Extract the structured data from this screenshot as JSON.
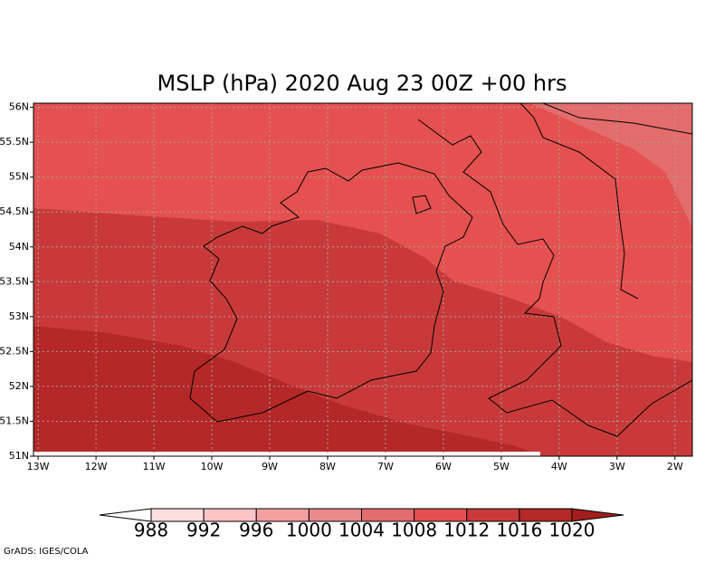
{
  "chart_data": {
    "type": "map",
    "title": "MSLP (hPa) 2020 Aug 23 00Z +00 hrs",
    "xlim": [
      -13.08,
      -1.7
    ],
    "ylim": [
      51,
      56.06
    ],
    "xticks": [
      {
        "value": -13,
        "label": "13W"
      },
      {
        "value": -12,
        "label": "12W"
      },
      {
        "value": -11,
        "label": "11W"
      },
      {
        "value": -10,
        "label": "10W"
      },
      {
        "value": -9,
        "label": "9W"
      },
      {
        "value": -8,
        "label": "8W"
      },
      {
        "value": -7,
        "label": "7W"
      },
      {
        "value": -6,
        "label": "6W"
      },
      {
        "value": -5,
        "label": "5W"
      },
      {
        "value": -4,
        "label": "4W"
      },
      {
        "value": -3,
        "label": "3W"
      },
      {
        "value": -2,
        "label": "2W"
      }
    ],
    "yticks": [
      {
        "value": 51,
        "label": "51N"
      },
      {
        "value": 51.5,
        "label": "51.5N"
      },
      {
        "value": 52,
        "label": "52N"
      },
      {
        "value": 52.5,
        "label": "52.5N"
      },
      {
        "value": 53,
        "label": "53N"
      },
      {
        "value": 53.5,
        "label": "53.5N"
      },
      {
        "value": 54,
        "label": "54N"
      },
      {
        "value": 54.5,
        "label": "54.5N"
      },
      {
        "value": 55,
        "label": "55N"
      },
      {
        "value": 55.5,
        "label": "55.5N"
      },
      {
        "value": 56,
        "label": "56N"
      }
    ],
    "grid": true,
    "colorbar": {
      "levels": [
        988,
        992,
        996,
        1000,
        1004,
        1008,
        1012,
        1016,
        1020
      ],
      "colors": [
        "#ffffff",
        "#ffe0e0",
        "#fcc4c4",
        "#f5a0a0",
        "#e88a8a",
        "#e36c6c",
        "#e55050",
        "#c83a3a",
        "#b42828",
        "#a01e1e"
      ]
    },
    "footer": "GrADS: IGES/COLA"
  }
}
